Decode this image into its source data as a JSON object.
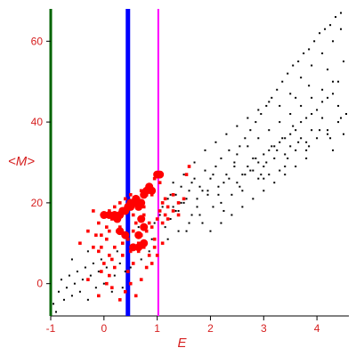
{
  "chart_data": {
    "type": "scatter",
    "title": "",
    "xlabel": "E",
    "ylabel": "<M>",
    "xlim": [
      -1.0,
      4.6
    ],
    "ylim": [
      -8,
      68
    ],
    "xticks": [
      -1,
      0,
      1,
      2,
      3,
      4
    ],
    "yticks": [
      0,
      20,
      40,
      60
    ],
    "grid": false,
    "vlines": [
      {
        "x": -1.0,
        "color": "#006400"
      },
      {
        "x": 0.45,
        "color": "#0000ff"
      },
      {
        "x": 1.02,
        "color": "#ff00ff"
      }
    ],
    "series": [
      {
        "color": "#000000",
        "points": [
          [
            -0.95,
            -5
          ],
          [
            -0.9,
            -7
          ],
          [
            -0.85,
            -2
          ],
          [
            -0.8,
            1
          ],
          [
            -0.75,
            -4
          ],
          [
            -0.7,
            -1
          ],
          [
            -0.65,
            2
          ],
          [
            -0.6,
            -3
          ],
          [
            -0.55,
            0
          ],
          [
            -0.5,
            3
          ],
          [
            -0.45,
            -2
          ],
          [
            -0.4,
            1
          ],
          [
            -0.35,
            4
          ],
          [
            -0.3,
            -4
          ],
          [
            -0.25,
            2
          ],
          [
            -0.2,
            5
          ],
          [
            -0.15,
            -1
          ],
          [
            -0.1,
            3
          ],
          [
            -0.05,
            6
          ],
          [
            0.0,
            0
          ],
          [
            0.05,
            4
          ],
          [
            0.1,
            7
          ],
          [
            0.15,
            -2
          ],
          [
            0.2,
            2
          ],
          [
            0.25,
            8
          ],
          [
            0.3,
            5
          ],
          [
            0.35,
            -1
          ],
          [
            0.4,
            3
          ],
          [
            -0.6,
            6
          ],
          [
            -0.3,
            8
          ],
          [
            0.5,
            4
          ],
          [
            0.55,
            9
          ],
          [
            0.6,
            12
          ],
          [
            0.65,
            14
          ],
          [
            0.7,
            6
          ],
          [
            0.75,
            10
          ],
          [
            0.8,
            13
          ],
          [
            0.85,
            8
          ],
          [
            0.9,
            11
          ],
          [
            0.95,
            15
          ],
          [
            1.05,
            17
          ],
          [
            1.1,
            19
          ],
          [
            1.15,
            14
          ],
          [
            1.2,
            21
          ],
          [
            1.25,
            16
          ],
          [
            1.3,
            19
          ],
          [
            1.35,
            22
          ],
          [
            1.4,
            18
          ],
          [
            1.45,
            24
          ],
          [
            1.5,
            20
          ],
          [
            1.55,
            13
          ],
          [
            1.6,
            23
          ],
          [
            1.65,
            17
          ],
          [
            1.7,
            26
          ],
          [
            1.75,
            21
          ],
          [
            1.8,
            24
          ],
          [
            1.85,
            15
          ],
          [
            1.9,
            28
          ],
          [
            1.95,
            22
          ],
          [
            2.0,
            26
          ],
          [
            2.05,
            19
          ],
          [
            2.1,
            29
          ],
          [
            2.15,
            24
          ],
          [
            2.2,
            31
          ],
          [
            2.25,
            18
          ],
          [
            2.3,
            27
          ],
          [
            2.35,
            33
          ],
          [
            2.4,
            22
          ],
          [
            2.45,
            30
          ],
          [
            2.5,
            25
          ],
          [
            2.55,
            34
          ],
          [
            2.6,
            27
          ],
          [
            2.65,
            36
          ],
          [
            2.7,
            29
          ],
          [
            2.75,
            38
          ],
          [
            2.8,
            31
          ],
          [
            2.85,
            40
          ],
          [
            2.9,
            30
          ],
          [
            2.95,
            42
          ],
          [
            3.0,
            32
          ],
          [
            3.05,
            44
          ],
          [
            3.1,
            33
          ],
          [
            3.15,
            46
          ],
          [
            3.2,
            34
          ],
          [
            3.25,
            48
          ],
          [
            3.3,
            35
          ],
          [
            3.35,
            50
          ],
          [
            3.4,
            36
          ],
          [
            3.45,
            52
          ],
          [
            3.5,
            37
          ],
          [
            3.55,
            54
          ],
          [
            3.6,
            38
          ],
          [
            3.65,
            55
          ],
          [
            3.7,
            40
          ],
          [
            3.75,
            57
          ],
          [
            3.8,
            41
          ],
          [
            3.85,
            58
          ],
          [
            3.9,
            42
          ],
          [
            3.95,
            60
          ],
          [
            4.0,
            43
          ],
          [
            4.05,
            62
          ],
          [
            4.1,
            45
          ],
          [
            4.15,
            63
          ],
          [
            4.2,
            46
          ],
          [
            4.25,
            64
          ],
          [
            4.3,
            47
          ],
          [
            4.35,
            66
          ],
          [
            4.4,
            50
          ],
          [
            4.45,
            67
          ],
          [
            4.5,
            55
          ],
          [
            1.3,
            25
          ],
          [
            1.5,
            27
          ],
          [
            1.7,
            30
          ],
          [
            1.9,
            33
          ],
          [
            2.1,
            35
          ],
          [
            2.3,
            37
          ],
          [
            2.5,
            39
          ],
          [
            2.7,
            41
          ],
          [
            2.9,
            43
          ],
          [
            3.1,
            45
          ],
          [
            2.0,
            13
          ],
          [
            2.2,
            15
          ],
          [
            2.4,
            17
          ],
          [
            2.6,
            19
          ],
          [
            2.8,
            21
          ],
          [
            3.0,
            23
          ],
          [
            3.2,
            25
          ],
          [
            3.4,
            27
          ],
          [
            3.6,
            29
          ],
          [
            3.8,
            31
          ],
          [
            2.5,
            32
          ],
          [
            2.7,
            34
          ],
          [
            2.9,
            36
          ],
          [
            3.1,
            38
          ],
          [
            3.3,
            40
          ],
          [
            3.5,
            42
          ],
          [
            3.7,
            44
          ],
          [
            3.9,
            46
          ],
          [
            4.1,
            48
          ],
          [
            4.3,
            50
          ],
          [
            1.2,
            11
          ],
          [
            1.4,
            13
          ],
          [
            1.6,
            15
          ],
          [
            1.8,
            17
          ],
          [
            2.2,
            20
          ],
          [
            2.6,
            23
          ],
          [
            3.0,
            26
          ],
          [
            3.4,
            29
          ],
          [
            3.8,
            33
          ],
          [
            4.2,
            37
          ],
          [
            3.3,
            44
          ],
          [
            3.5,
            47
          ],
          [
            3.7,
            51
          ],
          [
            3.9,
            54
          ],
          [
            4.1,
            57
          ],
          [
            4.3,
            60
          ],
          [
            4.45,
            63
          ],
          [
            3.6,
            46
          ],
          [
            3.85,
            49
          ],
          [
            4.2,
            53
          ],
          [
            2.8,
            28
          ],
          [
            3.0,
            29
          ],
          [
            3.2,
            31
          ],
          [
            3.4,
            32
          ],
          [
            3.6,
            33
          ],
          [
            3.8,
            35
          ],
          [
            4.0,
            36
          ],
          [
            4.2,
            38
          ],
          [
            4.4,
            40
          ],
          [
            4.55,
            42
          ],
          [
            1.25,
            22
          ],
          [
            1.45,
            20
          ],
          [
            1.65,
            25
          ],
          [
            1.85,
            23
          ],
          [
            2.05,
            27
          ],
          [
            2.25,
            25
          ],
          [
            2.45,
            29
          ],
          [
            2.65,
            27
          ],
          [
            2.85,
            31
          ],
          [
            3.05,
            30
          ],
          [
            3.25,
            33
          ],
          [
            3.45,
            31
          ],
          [
            3.65,
            35
          ],
          [
            3.85,
            34
          ],
          [
            4.05,
            38
          ],
          [
            4.25,
            36
          ],
          [
            4.45,
            41
          ],
          [
            3.15,
            34
          ],
          [
            3.35,
            36
          ],
          [
            3.55,
            39
          ],
          [
            1.15,
            17
          ],
          [
            1.35,
            18
          ],
          [
            1.55,
            21
          ],
          [
            1.75,
            19
          ],
          [
            1.95,
            23
          ],
          [
            2.15,
            22
          ],
          [
            2.35,
            26
          ],
          [
            2.55,
            24
          ],
          [
            2.75,
            28
          ],
          [
            2.95,
            27
          ],
          [
            4.5,
            37
          ],
          [
            4.4,
            44
          ],
          [
            4.3,
            33
          ],
          [
            4.1,
            41
          ],
          [
            3.9,
            38
          ],
          [
            3.7,
            36
          ],
          [
            3.5,
            34
          ],
          [
            3.3,
            28
          ],
          [
            3.1,
            27
          ],
          [
            2.9,
            26
          ]
        ]
      },
      {
        "color": "#ff0000",
        "points": [
          [
            -0.45,
            10
          ],
          [
            -0.3,
            13
          ],
          [
            -0.2,
            9
          ],
          [
            -0.1,
            15
          ],
          [
            -0.05,
            12
          ],
          [
            0.0,
            17
          ],
          [
            0.05,
            14
          ],
          [
            0.1,
            18
          ],
          [
            0.15,
            16
          ],
          [
            0.2,
            19
          ],
          [
            0.25,
            17
          ],
          [
            0.3,
            20
          ],
          [
            0.35,
            18
          ],
          [
            0.4,
            21
          ],
          [
            0.42,
            19
          ],
          [
            0.5,
            22
          ],
          [
            0.55,
            17
          ],
          [
            0.6,
            20
          ],
          [
            0.65,
            21
          ],
          [
            0.7,
            23
          ],
          [
            0.75,
            19
          ],
          [
            0.8,
            22
          ],
          [
            0.85,
            24
          ],
          [
            0.9,
            22
          ],
          [
            0.95,
            26
          ],
          [
            1.0,
            27
          ],
          [
            1.05,
            25
          ],
          [
            1.1,
            20
          ],
          [
            1.15,
            21
          ],
          [
            1.2,
            19
          ],
          [
            1.3,
            22
          ],
          [
            1.4,
            20
          ],
          [
            1.5,
            21
          ],
          [
            1.55,
            27
          ],
          [
            1.6,
            29
          ],
          [
            -0.2,
            18
          ],
          [
            -0.1,
            8
          ],
          [
            0.0,
            5
          ],
          [
            0.05,
            11
          ],
          [
            0.1,
            2
          ],
          [
            0.15,
            6
          ],
          [
            0.2,
            9
          ],
          [
            0.25,
            13
          ],
          [
            0.3,
            14
          ],
          [
            0.35,
            10
          ],
          [
            0.45,
            11
          ],
          [
            0.5,
            8
          ],
          [
            0.55,
            13
          ],
          [
            0.6,
            15
          ],
          [
            0.65,
            10
          ],
          [
            0.7,
            12
          ],
          [
            0.75,
            17
          ],
          [
            0.8,
            13
          ],
          [
            0.85,
            15
          ],
          [
            0.9,
            14
          ],
          [
            0.95,
            11
          ],
          [
            1.0,
            16
          ],
          [
            1.05,
            18
          ],
          [
            1.1,
            15
          ],
          [
            1.15,
            17
          ],
          [
            1.2,
            16
          ],
          [
            1.3,
            18
          ],
          [
            1.4,
            17
          ],
          [
            0.25,
            16
          ],
          [
            0.1,
            13
          ],
          [
            -0.15,
            12
          ],
          [
            0.35,
            7
          ],
          [
            0.45,
            3
          ],
          [
            0.55,
            5
          ],
          [
            0.65,
            8
          ],
          [
            0.75,
            9
          ],
          [
            0.85,
            7
          ],
          [
            0.95,
            9
          ],
          [
            0.05,
            0
          ],
          [
            0.15,
            -1
          ],
          [
            -0.3,
            1
          ],
          [
            -0.1,
            -3
          ],
          [
            -0.05,
            3
          ],
          [
            0.2,
            4
          ],
          [
            0.4,
            -2
          ],
          [
            0.3,
            -4
          ],
          [
            0.6,
            -3
          ],
          [
            0.7,
            1
          ],
          [
            0.8,
            4
          ],
          [
            0.9,
            5
          ],
          [
            1.0,
            7
          ],
          [
            1.1,
            10
          ],
          [
            0.5,
            0
          ],
          [
            0.1,
            7
          ],
          [
            -0.05,
            9
          ]
        ]
      },
      {
        "color": "#ff0000",
        "big": true,
        "points": [
          [
            0.0,
            17
          ],
          [
            0.1,
            17
          ],
          [
            0.2,
            17
          ],
          [
            0.25,
            16
          ],
          [
            0.3,
            17
          ],
          [
            0.35,
            18
          ],
          [
            0.4,
            18
          ],
          [
            0.45,
            19
          ],
          [
            0.5,
            20
          ],
          [
            0.55,
            20
          ],
          [
            0.6,
            21
          ],
          [
            0.65,
            19
          ],
          [
            0.7,
            20
          ],
          [
            0.75,
            22
          ],
          [
            0.8,
            23
          ],
          [
            0.85,
            24
          ],
          [
            0.9,
            23
          ],
          [
            1.0,
            27
          ],
          [
            1.05,
            27
          ],
          [
            0.5,
            19
          ],
          [
            0.3,
            13
          ],
          [
            0.4,
            12
          ],
          [
            0.65,
            12
          ],
          [
            0.7,
            16
          ],
          [
            0.75,
            14
          ],
          [
            0.65,
            9
          ],
          [
            0.55,
            9
          ],
          [
            0.75,
            10
          ]
        ]
      }
    ]
  }
}
